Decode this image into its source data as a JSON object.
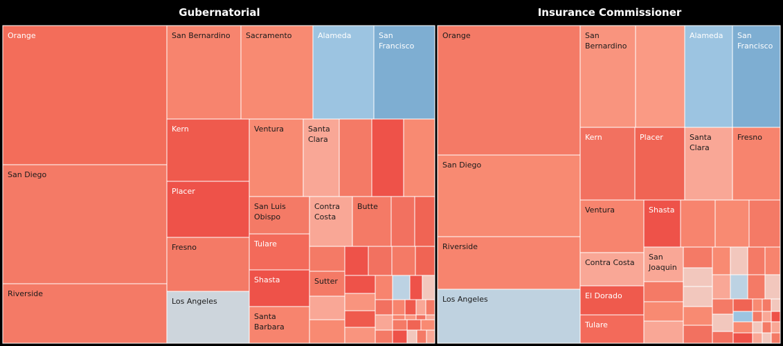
{
  "chart_data": [
    {
      "type": "treemap",
      "title": "Gubernatorial",
      "colors": {
        "red_dark": "#ee5249",
        "red": "#f27160",
        "red_mid": "#f47a66",
        "red_light": "#f88a72",
        "pink": "#f9a796",
        "pale": "#f2c7bd",
        "grey": "#cdd5dc",
        "blue_light": "#9cc4e1",
        "blue": "#7eaed2"
      },
      "tiles": [
        {
          "label": "Orange",
          "color": "#f36d5a"
        },
        {
          "label": "San Diego",
          "color": "#f47a66"
        },
        {
          "label": "Riverside",
          "color": "#f47a66"
        },
        {
          "label": "San Bernardino",
          "color": "#f7846e"
        },
        {
          "label": "Sacramento",
          "color": "#f88a72"
        },
        {
          "label": "Alameda",
          "color": "#9cc4e1"
        },
        {
          "label": "San Francisco",
          "color": "#7eaed2"
        },
        {
          "label": "Kern",
          "color": "#ef5a4d"
        },
        {
          "label": "Placer",
          "color": "#ee5249"
        },
        {
          "label": "Fresno",
          "color": "#f47a66"
        },
        {
          "label": "Los Angeles",
          "color": "#cdd5dc"
        },
        {
          "label": "Ventura",
          "color": "#f88a72"
        },
        {
          "label": "Santa Clara",
          "color": "#f9a796"
        },
        {
          "label": "",
          "color": "#f47a66"
        },
        {
          "label": "",
          "color": "#ee5249"
        },
        {
          "label": "",
          "color": "#f88a72"
        },
        {
          "label": "San Luis Obispo",
          "color": "#f47a66"
        },
        {
          "label": "Contra Costa",
          "color": "#f9a796"
        },
        {
          "label": "Butte",
          "color": "#f47a66"
        },
        {
          "label": "",
          "color": "#f27160"
        },
        {
          "label": "",
          "color": "#f06454"
        },
        {
          "label": "Tulare",
          "color": "#f36a5a"
        },
        {
          "label": "Shasta",
          "color": "#ee5249"
        },
        {
          "label": "Sutter",
          "color": "#f47a66"
        },
        {
          "label": "Santa Barbara",
          "color": "#f7846e"
        }
      ]
    },
    {
      "type": "treemap",
      "title": "Insurance Commissioner",
      "tiles": [
        {
          "label": "Orange",
          "color": "#f47a66"
        },
        {
          "label": "San Diego",
          "color": "#f88a72"
        },
        {
          "label": "Riverside",
          "color": "#f7846e"
        },
        {
          "label": "Los Angeles",
          "color": "#bfd2e0"
        },
        {
          "label": "San Bernardino",
          "color": "#f9947e"
        },
        {
          "label": "",
          "color": "#fa9a84"
        },
        {
          "label": "Alameda",
          "color": "#9cc4e1"
        },
        {
          "label": "San Francisco",
          "color": "#7eaed2"
        },
        {
          "label": "Kern",
          "color": "#f27160"
        },
        {
          "label": "Placer",
          "color": "#f06454"
        },
        {
          "label": "Santa Clara",
          "color": "#f9a796"
        },
        {
          "label": "Fresno",
          "color": "#f7846e"
        },
        {
          "label": "Ventura",
          "color": "#f7846e"
        },
        {
          "label": "Shasta",
          "color": "#ee5249"
        },
        {
          "label": "",
          "color": "#f7846e"
        },
        {
          "label": "",
          "color": "#f88a72"
        },
        {
          "label": "",
          "color": "#f47a66"
        },
        {
          "label": "Contra Costa",
          "color": "#f9a796"
        },
        {
          "label": "San Joaquin",
          "color": "#f9a796"
        },
        {
          "label": "El Dorado",
          "color": "#ef5a4d"
        },
        {
          "label": "Tulare",
          "color": "#f36a5a"
        }
      ]
    }
  ]
}
